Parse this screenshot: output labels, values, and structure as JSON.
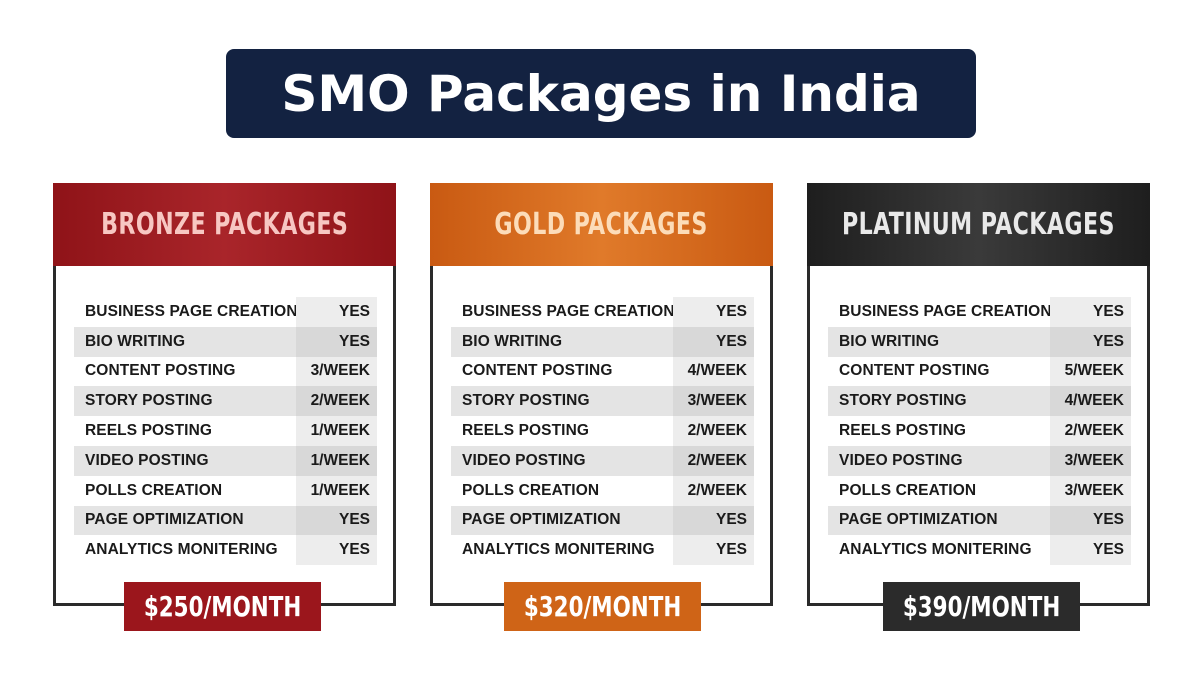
{
  "title": "SMO Packages in India",
  "packages": [
    {
      "name": "BRONZE PACKAGES",
      "price": "$250/MONTH",
      "features": [
        {
          "name": "BUSINESS PAGE CREATIONS",
          "value": "YES"
        },
        {
          "name": "BIO WRITING",
          "value": "YES"
        },
        {
          "name": "CONTENT POSTING",
          "value": "3/WEEK"
        },
        {
          "name": "STORY POSTING",
          "value": "2/WEEK"
        },
        {
          "name": "REELS POSTING",
          "value": "1/WEEK"
        },
        {
          "name": "VIDEO POSTING",
          "value": "1/WEEK"
        },
        {
          "name": "POLLS CREATION",
          "value": "1/WEEK"
        },
        {
          "name": "PAGE OPTIMIZATION",
          "value": "YES"
        },
        {
          "name": "ANALYTICS MONITERING",
          "value": "YES"
        }
      ]
    },
    {
      "name": "GOLD PACKAGES",
      "price": "$320/MONTH",
      "features": [
        {
          "name": "BUSINESS PAGE CREATIONS",
          "value": "YES"
        },
        {
          "name": "BIO WRITING",
          "value": "YES"
        },
        {
          "name": "CONTENT POSTING",
          "value": "4/WEEK"
        },
        {
          "name": "STORY POSTING",
          "value": "3/WEEK"
        },
        {
          "name": "REELS POSTING",
          "value": "2/WEEK"
        },
        {
          "name": "VIDEO POSTING",
          "value": "2/WEEK"
        },
        {
          "name": "POLLS CREATION",
          "value": "2/WEEK"
        },
        {
          "name": "PAGE OPTIMIZATION",
          "value": "YES"
        },
        {
          "name": "ANALYTICS MONITERING",
          "value": "YES"
        }
      ]
    },
    {
      "name": "PLATINUM PACKAGES",
      "price": "$390/MONTH",
      "features": [
        {
          "name": "BUSINESS PAGE CREATIONS",
          "value": "YES"
        },
        {
          "name": "BIO WRITING",
          "value": "YES"
        },
        {
          "name": "CONTENT POSTING",
          "value": "5/WEEK"
        },
        {
          "name": "STORY POSTING",
          "value": "4/WEEK"
        },
        {
          "name": "REELS POSTING",
          "value": "2/WEEK"
        },
        {
          "name": "VIDEO POSTING",
          "value": "3/WEEK"
        },
        {
          "name": "POLLS CREATION",
          "value": "3/WEEK"
        },
        {
          "name": "PAGE OPTIMIZATION",
          "value": "YES"
        },
        {
          "name": "ANALYTICS MONITERING",
          "value": "YES"
        }
      ]
    }
  ],
  "colors": {
    "title_banner": "#132241",
    "bronze": "#9b161c",
    "gold": "#cf6417",
    "platinum": "#2b2b2b"
  }
}
